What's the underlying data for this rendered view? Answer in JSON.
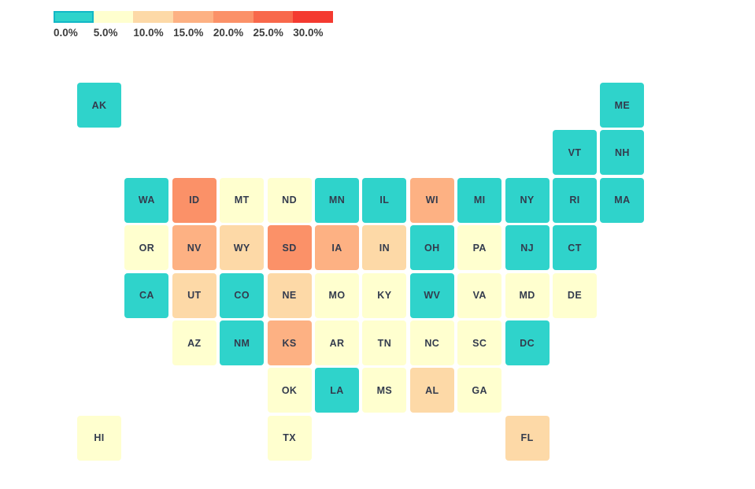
{
  "chart_data": {
    "type": "heatmap",
    "subtype": "us-state-tile-grid-cartogram",
    "title": "",
    "legend": {
      "position": "top-left",
      "tick_labels": [
        "0.0%",
        "5.0%",
        "10.0%",
        "15.0%",
        "20.0%",
        "25.0%",
        "30.0%"
      ],
      "bin_colors": [
        "#2fd3cb",
        "#ffffcf",
        "#fdd9a7",
        "#fdb183",
        "#fb9168",
        "#f8684b",
        "#f43a30"
      ],
      "bin_ranges": [
        "0.0%-5.0%",
        "5.0%-10.0%",
        "10.0%-15.0%",
        "15.0%-20.0%",
        "20.0%-25.0%",
        "25.0%-30.0%",
        "30.0%+"
      ]
    },
    "grid": {
      "columns": 12,
      "rows": 8
    },
    "states": [
      {
        "state": "AK",
        "row": 1,
        "col": 1,
        "bin": 0,
        "range": "0.0%-5.0%"
      },
      {
        "state": "ME",
        "row": 1,
        "col": 12,
        "bin": 0,
        "range": "0.0%-5.0%"
      },
      {
        "state": "VT",
        "row": 2,
        "col": 11,
        "bin": 0,
        "range": "0.0%-5.0%"
      },
      {
        "state": "NH",
        "row": 2,
        "col": 12,
        "bin": 0,
        "range": "0.0%-5.0%"
      },
      {
        "state": "WA",
        "row": 3,
        "col": 2,
        "bin": 0,
        "range": "0.0%-5.0%"
      },
      {
        "state": "ID",
        "row": 3,
        "col": 3,
        "bin": 4,
        "range": "20.0%-25.0%"
      },
      {
        "state": "MT",
        "row": 3,
        "col": 4,
        "bin": 1,
        "range": "5.0%-10.0%"
      },
      {
        "state": "ND",
        "row": 3,
        "col": 5,
        "bin": 1,
        "range": "5.0%-10.0%"
      },
      {
        "state": "MN",
        "row": 3,
        "col": 6,
        "bin": 0,
        "range": "0.0%-5.0%"
      },
      {
        "state": "IL",
        "row": 3,
        "col": 7,
        "bin": 0,
        "range": "0.0%-5.0%"
      },
      {
        "state": "WI",
        "row": 3,
        "col": 8,
        "bin": 3,
        "range": "15.0%-20.0%"
      },
      {
        "state": "MI",
        "row": 3,
        "col": 9,
        "bin": 0,
        "range": "0.0%-5.0%"
      },
      {
        "state": "NY",
        "row": 3,
        "col": 10,
        "bin": 0,
        "range": "0.0%-5.0%"
      },
      {
        "state": "RI",
        "row": 3,
        "col": 11,
        "bin": 0,
        "range": "0.0%-5.0%"
      },
      {
        "state": "MA",
        "row": 3,
        "col": 12,
        "bin": 0,
        "range": "0.0%-5.0%"
      },
      {
        "state": "OR",
        "row": 4,
        "col": 2,
        "bin": 1,
        "range": "5.0%-10.0%"
      },
      {
        "state": "NV",
        "row": 4,
        "col": 3,
        "bin": 3,
        "range": "15.0%-20.0%"
      },
      {
        "state": "WY",
        "row": 4,
        "col": 4,
        "bin": 2,
        "range": "10.0%-15.0%"
      },
      {
        "state": "SD",
        "row": 4,
        "col": 5,
        "bin": 4,
        "range": "20.0%-25.0%"
      },
      {
        "state": "IA",
        "row": 4,
        "col": 6,
        "bin": 3,
        "range": "15.0%-20.0%"
      },
      {
        "state": "IN",
        "row": 4,
        "col": 7,
        "bin": 2,
        "range": "10.0%-15.0%"
      },
      {
        "state": "OH",
        "row": 4,
        "col": 8,
        "bin": 0,
        "range": "0.0%-5.0%"
      },
      {
        "state": "PA",
        "row": 4,
        "col": 9,
        "bin": 1,
        "range": "5.0%-10.0%"
      },
      {
        "state": "NJ",
        "row": 4,
        "col": 10,
        "bin": 0,
        "range": "0.0%-5.0%"
      },
      {
        "state": "CT",
        "row": 4,
        "col": 11,
        "bin": 0,
        "range": "0.0%-5.0%"
      },
      {
        "state": "CA",
        "row": 5,
        "col": 2,
        "bin": 0,
        "range": "0.0%-5.0%"
      },
      {
        "state": "UT",
        "row": 5,
        "col": 3,
        "bin": 2,
        "range": "10.0%-15.0%"
      },
      {
        "state": "CO",
        "row": 5,
        "col": 4,
        "bin": 0,
        "range": "0.0%-5.0%"
      },
      {
        "state": "NE",
        "row": 5,
        "col": 5,
        "bin": 2,
        "range": "10.0%-15.0%"
      },
      {
        "state": "MO",
        "row": 5,
        "col": 6,
        "bin": 1,
        "range": "5.0%-10.0%"
      },
      {
        "state": "KY",
        "row": 5,
        "col": 7,
        "bin": 1,
        "range": "5.0%-10.0%"
      },
      {
        "state": "WV",
        "row": 5,
        "col": 8,
        "bin": 0,
        "range": "0.0%-5.0%"
      },
      {
        "state": "VA",
        "row": 5,
        "col": 9,
        "bin": 1,
        "range": "5.0%-10.0%"
      },
      {
        "state": "MD",
        "row": 5,
        "col": 10,
        "bin": 1,
        "range": "5.0%-10.0%"
      },
      {
        "state": "DE",
        "row": 5,
        "col": 11,
        "bin": 1,
        "range": "5.0%-10.0%"
      },
      {
        "state": "AZ",
        "row": 6,
        "col": 3,
        "bin": 1,
        "range": "5.0%-10.0%"
      },
      {
        "state": "NM",
        "row": 6,
        "col": 4,
        "bin": 0,
        "range": "0.0%-5.0%"
      },
      {
        "state": "KS",
        "row": 6,
        "col": 5,
        "bin": 3,
        "range": "15.0%-20.0%"
      },
      {
        "state": "AR",
        "row": 6,
        "col": 6,
        "bin": 1,
        "range": "5.0%-10.0%"
      },
      {
        "state": "TN",
        "row": 6,
        "col": 7,
        "bin": 1,
        "range": "5.0%-10.0%"
      },
      {
        "state": "NC",
        "row": 6,
        "col": 8,
        "bin": 1,
        "range": "5.0%-10.0%"
      },
      {
        "state": "SC",
        "row": 6,
        "col": 9,
        "bin": 1,
        "range": "5.0%-10.0%"
      },
      {
        "state": "DC",
        "row": 6,
        "col": 10,
        "bin": 0,
        "range": "0.0%-5.0%"
      },
      {
        "state": "OK",
        "row": 7,
        "col": 5,
        "bin": 1,
        "range": "5.0%-10.0%"
      },
      {
        "state": "LA",
        "row": 7,
        "col": 6,
        "bin": 0,
        "range": "0.0%-5.0%"
      },
      {
        "state": "MS",
        "row": 7,
        "col": 7,
        "bin": 1,
        "range": "5.0%-10.0%"
      },
      {
        "state": "AL",
        "row": 7,
        "col": 8,
        "bin": 2,
        "range": "10.0%-15.0%"
      },
      {
        "state": "GA",
        "row": 7,
        "col": 9,
        "bin": 1,
        "range": "5.0%-10.0%"
      },
      {
        "state": "HI",
        "row": 8,
        "col": 1,
        "bin": 1,
        "range": "5.0%-10.0%"
      },
      {
        "state": "TX",
        "row": 8,
        "col": 5,
        "bin": 1,
        "range": "5.0%-10.0%"
      },
      {
        "state": "FL",
        "row": 8,
        "col": 10,
        "bin": 2,
        "range": "10.0%-15.0%"
      }
    ]
  },
  "colors": {
    "background": "#ffffff",
    "tile_text": "#333b4d",
    "legend_text": "#3d3d3d",
    "legend_first_swatch_border": "#12b7c6"
  }
}
